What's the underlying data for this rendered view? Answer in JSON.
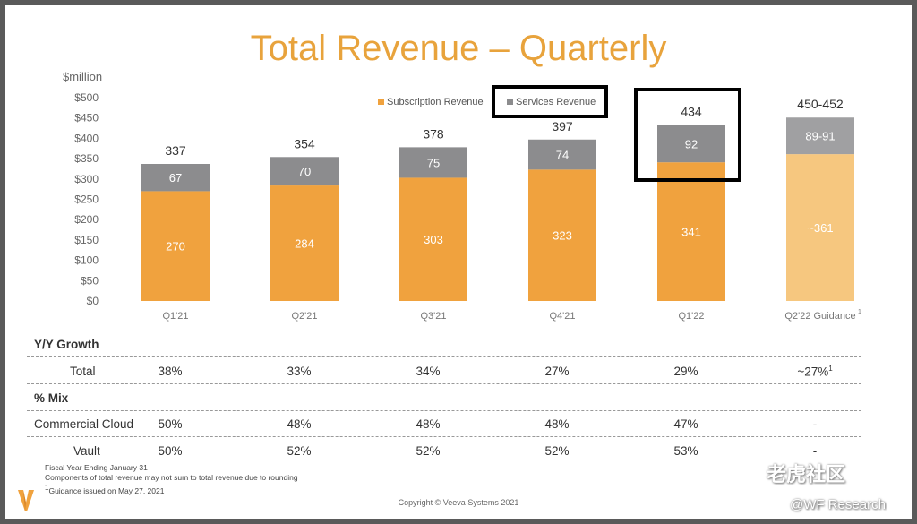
{
  "title": "Total Revenue – Quarterly",
  "unit_label": "$million",
  "legend": {
    "subscription": "Subscription Revenue",
    "services": "Services Revenue"
  },
  "colors": {
    "subscription": "#F0A23E",
    "services": "#8C8C8E",
    "guidance_subscription": "#F6C77F",
    "guidance_services": "#A0A0A2",
    "title": "#E8A33C"
  },
  "chart_data": {
    "type": "bar",
    "stacked": true,
    "categories": [
      "Q1'21",
      "Q2'21",
      "Q3'21",
      "Q4'21",
      "Q1'22",
      "Q2'22 Guidance"
    ],
    "series": [
      {
        "name": "Subscription Revenue",
        "values": [
          270,
          284,
          303,
          323,
          341,
          361
        ],
        "labels": [
          "270",
          "284",
          "303",
          "323",
          "341",
          "~361"
        ]
      },
      {
        "name": "Services Revenue",
        "values": [
          67,
          70,
          75,
          74,
          92,
          90
        ],
        "labels": [
          "67",
          "70",
          "75",
          "74",
          "92",
          "89-91"
        ]
      }
    ],
    "totals": [
      "337",
      "354",
      "378",
      "397",
      "434",
      "450-452"
    ],
    "yticks": [
      "$0",
      "$50",
      "$100",
      "$150",
      "$200",
      "$250",
      "$300",
      "$350",
      "$400",
      "$450",
      "$500"
    ],
    "ylim": [
      0,
      500
    ],
    "ylabel": "$million",
    "xlabel": "",
    "legend_position": "top-right",
    "grid": false
  },
  "table": {
    "yy_header": "Y/Y Growth",
    "total_label": "Total",
    "total_values": [
      "38%",
      "33%",
      "34%",
      "27%",
      "29%",
      "~27%"
    ],
    "mix_header": "% Mix",
    "cloud_label": "Commercial Cloud",
    "cloud_values": [
      "50%",
      "48%",
      "48%",
      "48%",
      "47%",
      "-"
    ],
    "vault_label": "Vault",
    "vault_values": [
      "50%",
      "52%",
      "52%",
      "52%",
      "53%",
      "-"
    ]
  },
  "footnotes": {
    "line1": "Fiscal Year Ending January 31",
    "line2": "Components of total revenue may not sum to total revenue due to rounding",
    "line3": "Guidance issued on May 27, 2021"
  },
  "copyright": "Copyright © Veeva Systems 2021",
  "watermark": {
    "site": "老虎社区",
    "handle": "@WF Research"
  }
}
